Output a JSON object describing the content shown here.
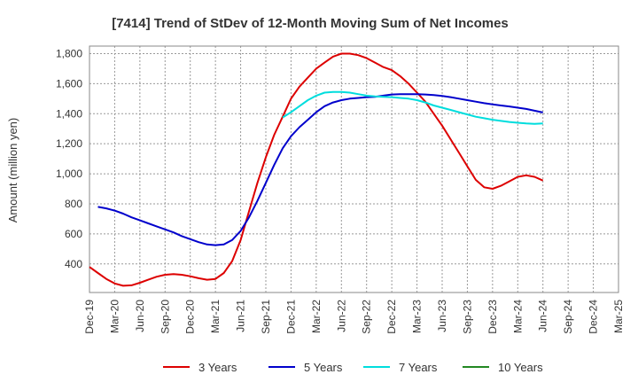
{
  "chart_data": {
    "type": "line",
    "title": "[7414]  Trend of StDev of 12-Month Moving Sum of Net Incomes",
    "xlabel": "",
    "ylabel": "Amount (million yen)",
    "x_ticks": [
      "Dec-19",
      "Mar-20",
      "Jun-20",
      "Sep-20",
      "Dec-20",
      "Mar-21",
      "Jun-21",
      "Sep-21",
      "Dec-21",
      "Mar-22",
      "Jun-22",
      "Sep-22",
      "Dec-22",
      "Mar-23",
      "Jun-23",
      "Sep-23",
      "Dec-23",
      "Mar-24",
      "Jun-24",
      "Sep-24",
      "Dec-24",
      "Mar-25"
    ],
    "y_ticks": [
      "400",
      "600",
      "800",
      "1,000",
      "1,200",
      "1,400",
      "1,600",
      "1,800"
    ],
    "y_tick_values": [
      400,
      600,
      800,
      1000,
      1200,
      1400,
      1600,
      1800
    ],
    "ylim": [
      210,
      1850
    ],
    "grid": true,
    "legend_position": "bottom",
    "series": [
      {
        "name": "3 Years",
        "color": "#dd0000",
        "values": [
          380,
          340,
          300,
          270,
          255,
          258,
          275,
          295,
          315,
          328,
          332,
          328,
          318,
          305,
          295,
          300,
          340,
          420,
          560,
          750,
          940,
          1110,
          1260,
          1380,
          1500,
          1580,
          1640,
          1700,
          1740,
          1780,
          1800,
          1800,
          1790,
          1770,
          1740,
          1710,
          1690,
          1650,
          1600,
          1540,
          1480,
          1400,
          1320,
          1230,
          1140,
          1050,
          960,
          910,
          900,
          920,
          950,
          980,
          990,
          980,
          955
        ],
        "start_index": 0
      },
      {
        "name": "5 Years",
        "color": "#0000cc",
        "values": [
          780,
          770,
          755,
          735,
          710,
          690,
          670,
          650,
          630,
          610,
          585,
          565,
          545,
          530,
          525,
          530,
          560,
          620,
          710,
          820,
          940,
          1060,
          1170,
          1250,
          1310,
          1360,
          1410,
          1450,
          1475,
          1490,
          1500,
          1505,
          1510,
          1512,
          1520,
          1528,
          1530,
          1530,
          1530,
          1528,
          1524,
          1518,
          1510,
          1500,
          1490,
          1480,
          1470,
          1462,
          1455,
          1448,
          1440,
          1432,
          1420,
          1408
        ],
        "start_index": 1
      },
      {
        "name": "7 Years",
        "color": "#00dddd",
        "values": [
          1375,
          1410,
          1450,
          1490,
          1520,
          1540,
          1545,
          1545,
          1540,
          1530,
          1520,
          1515,
          1512,
          1510,
          1505,
          1500,
          1490,
          1475,
          1455,
          1440,
          1425,
          1410,
          1395,
          1380,
          1370,
          1360,
          1352,
          1345,
          1340,
          1335,
          1332,
          1335
        ],
        "start_index": 23
      },
      {
        "name": "10 Years",
        "color": "#228822",
        "values": [],
        "start_index": 0
      }
    ]
  }
}
